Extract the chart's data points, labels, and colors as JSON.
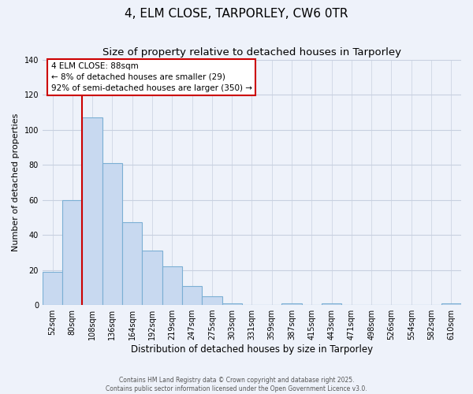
{
  "title": "4, ELM CLOSE, TARPORLEY, CW6 0TR",
  "subtitle": "Size of property relative to detached houses in Tarporley",
  "xlabel": "Distribution of detached houses by size in Tarporley",
  "ylabel": "Number of detached properties",
  "bar_labels": [
    "52sqm",
    "80sqm",
    "108sqm",
    "136sqm",
    "164sqm",
    "192sqm",
    "219sqm",
    "247sqm",
    "275sqm",
    "303sqm",
    "331sqm",
    "359sqm",
    "387sqm",
    "415sqm",
    "443sqm",
    "471sqm",
    "498sqm",
    "526sqm",
    "554sqm",
    "582sqm",
    "610sqm"
  ],
  "bar_values": [
    19,
    60,
    107,
    81,
    47,
    31,
    22,
    11,
    5,
    1,
    0,
    0,
    1,
    0,
    1,
    0,
    0,
    0,
    0,
    0,
    1
  ],
  "bar_color": "#c8d9f0",
  "bar_edge_color": "#7bafd4",
  "vline_color": "#cc0000",
  "vline_pos": 1.5,
  "ylim": [
    0,
    140
  ],
  "yticks": [
    0,
    20,
    40,
    60,
    80,
    100,
    120,
    140
  ],
  "annotation_title": "4 ELM CLOSE: 88sqm",
  "annotation_line1": "← 8% of detached houses are smaller (29)",
  "annotation_line2": "92% of semi-detached houses are larger (350) →",
  "annotation_box_color": "#ffffff",
  "annotation_box_edge": "#cc0000",
  "footer1": "Contains HM Land Registry data © Crown copyright and database right 2025.",
  "footer2": "Contains public sector information licensed under the Open Government Licence v3.0.",
  "bg_color": "#eef2fa",
  "grid_color": "#c8d0e0",
  "title_fontsize": 11,
  "subtitle_fontsize": 9.5
}
